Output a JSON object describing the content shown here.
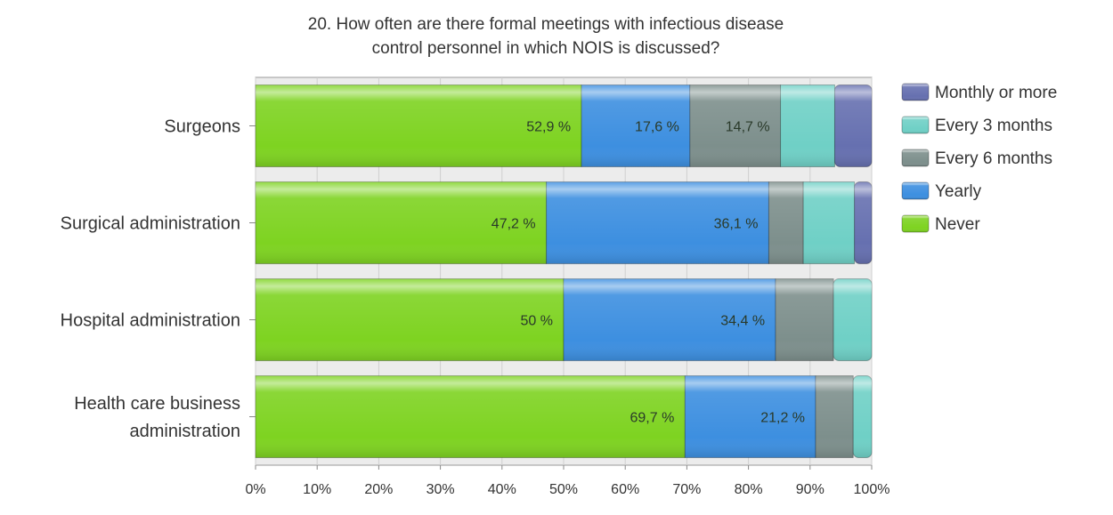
{
  "chart_data": {
    "type": "bar",
    "orientation": "horizontal",
    "stacked": true,
    "title_lines": [
      "20. How often are there formal meetings with infectious disease",
      "control personnel in which NOIS is discussed?"
    ],
    "categories": [
      [
        "Surgeons"
      ],
      [
        "Surgical administration"
      ],
      [
        "Hospital administration"
      ],
      [
        "Health care business",
        "administration"
      ]
    ],
    "series": [
      {
        "name": "Never",
        "color": "#7ed321",
        "values": [
          52.9,
          47.2,
          50,
          69.7
        ],
        "labels": [
          "52,9 %",
          "47,2 %",
          "50 %",
          "69,7 %"
        ]
      },
      {
        "name": "Yearly",
        "color": "#3d8fe0",
        "values": [
          17.6,
          36.1,
          34.4,
          21.2
        ],
        "labels": [
          "17,6 %",
          "36,1 %",
          "34,4 %",
          "21,2 %"
        ]
      },
      {
        "name": "Every 6 months",
        "color": "#7d8f8c",
        "values": [
          14.7,
          5.6,
          9.4,
          6.1
        ],
        "labels": [
          "14,7 %",
          "",
          "",
          ""
        ]
      },
      {
        "name": "Every 3 months",
        "color": "#6fd0c6",
        "values": [
          8.8,
          8.3,
          6.2,
          3.0
        ],
        "labels": [
          "",
          "",
          "",
          ""
        ]
      },
      {
        "name": "Monthly or more",
        "color": "#6670b0",
        "values": [
          6.0,
          2.8,
          0,
          0
        ],
        "labels": [
          "",
          "",
          "",
          ""
        ]
      }
    ],
    "legend_order": [
      "Monthly or more",
      "Every 3 months",
      "Every 6 months",
      "Yearly",
      "Never"
    ],
    "x_ticks": [
      "0%",
      "10%",
      "20%",
      "30%",
      "40%",
      "50%",
      "60%",
      "70%",
      "80%",
      "90%",
      "100%"
    ],
    "xlim": [
      0,
      100
    ],
    "grid": true,
    "legend_position": "right"
  }
}
